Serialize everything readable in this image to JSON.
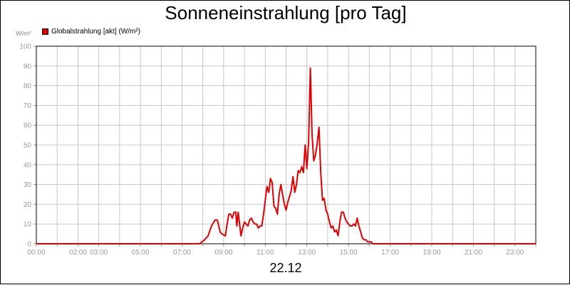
{
  "chart_data": {
    "type": "line",
    "title": "Sonneneinstrahlung [pro Tag]",
    "ylabel": "W/m²",
    "xlabel": "22.12",
    "ylim": [
      0,
      100
    ],
    "xlim": [
      "00:00",
      "24:00"
    ],
    "y_ticks": [
      "0",
      "10",
      "20",
      "30",
      "40",
      "50",
      "60",
      "70",
      "80",
      "90",
      "100"
    ],
    "x_tick_labels": [
      "00:00",
      "02:00",
      "03:00",
      "05:00",
      "07:00",
      "09:00",
      "11:00",
      "13:00",
      "15:00",
      "17:00",
      "19:00",
      "21:00",
      "23:00"
    ],
    "grid": true,
    "legend_position": "top-left",
    "series": [
      {
        "name": "Globalstrahlung [akt] (W/m²)",
        "color": "#e00000",
        "x": [
          "00:00",
          "07:50",
          "08:05",
          "08:15",
          "08:25",
          "08:35",
          "08:42",
          "08:50",
          "08:55",
          "09:05",
          "09:10",
          "09:15",
          "09:20",
          "09:25",
          "09:30",
          "09:35",
          "09:38",
          "09:42",
          "09:50",
          "09:55",
          "10:00",
          "10:05",
          "10:10",
          "10:15",
          "10:20",
          "10:25",
          "10:30",
          "10:35",
          "10:40",
          "10:45",
          "10:50",
          "10:55",
          "11:00",
          "11:05",
          "11:10",
          "11:15",
          "11:20",
          "11:25",
          "11:30",
          "11:35",
          "11:40",
          "11:45",
          "11:50",
          "11:55",
          "12:00",
          "12:05",
          "12:10",
          "12:15",
          "12:20",
          "12:25",
          "12:30",
          "12:35",
          "12:40",
          "12:45",
          "12:50",
          "12:55",
          "13:00",
          "13:05",
          "13:10",
          "13:15",
          "13:20",
          "13:25",
          "13:30",
          "13:35",
          "13:40",
          "13:45",
          "13:50",
          "13:55",
          "14:00",
          "14:05",
          "14:10",
          "14:15",
          "14:20",
          "14:25",
          "14:30",
          "14:35",
          "14:40",
          "14:45",
          "14:50",
          "14:55",
          "15:00",
          "15:05",
          "15:10",
          "15:15",
          "15:20",
          "15:25",
          "15:30",
          "15:35",
          "15:40",
          "15:45",
          "15:50",
          "15:55",
          "16:00",
          "16:05",
          "16:10",
          "16:20",
          "16:30",
          "16:45",
          "17:00",
          "24:00"
        ],
        "values": [
          0,
          0,
          2,
          4,
          9,
          12,
          12,
          6,
          5,
          4,
          10,
          15,
          15,
          13,
          16,
          16,
          9,
          16,
          4,
          8,
          11,
          10,
          9,
          12,
          13,
          11,
          10,
          10,
          8,
          9,
          9,
          15,
          22,
          29,
          26,
          33,
          31,
          19,
          18,
          15,
          25,
          30,
          25,
          20,
          17,
          21,
          24,
          27,
          34,
          26,
          30,
          37,
          36,
          39,
          36,
          50,
          38,
          51,
          89,
          55,
          42,
          45,
          51,
          59,
          36,
          22,
          23,
          17,
          15,
          11,
          8,
          9,
          6,
          7,
          4,
          11,
          16,
          16,
          13,
          11,
          10,
          9,
          9,
          10,
          9,
          13,
          9,
          6,
          3,
          2,
          2,
          1,
          1,
          1,
          0,
          0,
          0,
          0,
          0,
          0
        ]
      }
    ]
  }
}
